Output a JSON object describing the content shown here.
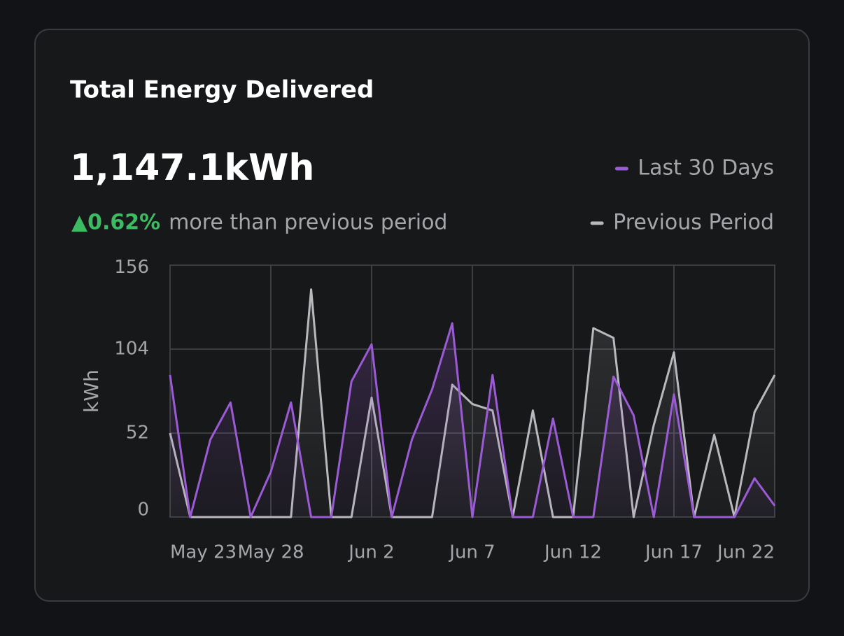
{
  "header": {
    "title": "Total Energy Delivered",
    "total": "1,147.1kWh",
    "change": "▲0.62%",
    "change_text": "more than previous period"
  },
  "chart_data": {
    "type": "line",
    "categories": [
      "May 23",
      null,
      null,
      null,
      null,
      "May 28",
      null,
      null,
      null,
      null,
      "Jun 2",
      null,
      null,
      null,
      null,
      "Jun 7",
      null,
      null,
      null,
      null,
      "Jun 12",
      null,
      null,
      null,
      null,
      "Jun 17",
      null,
      null,
      null,
      null,
      "Jun 22"
    ],
    "series": [
      {
        "name": "Last 30 Days",
        "color": "#9b5bd4",
        "values": [
          88,
          0,
          48,
          71,
          0,
          28,
          71,
          0,
          0,
          84,
          107,
          0,
          48,
          79,
          120,
          0,
          88,
          0,
          0,
          61,
          0,
          0,
          87,
          63,
          0,
          76,
          0,
          0,
          0,
          24,
          7
        ]
      },
      {
        "name": "Previous Period",
        "color": "#b9b9bd",
        "values": [
          52,
          0,
          0,
          0,
          0,
          0,
          0,
          141,
          0,
          0,
          74,
          0,
          0,
          0,
          82,
          70,
          66,
          0,
          66,
          0,
          0,
          117,
          111,
          0,
          57,
          102,
          0,
          51,
          0,
          65,
          88
        ]
      }
    ],
    "y_label": "kWh",
    "ylim": [
      0,
      156
    ],
    "yticks": [
      0,
      52,
      104,
      156
    ],
    "grid": true
  }
}
